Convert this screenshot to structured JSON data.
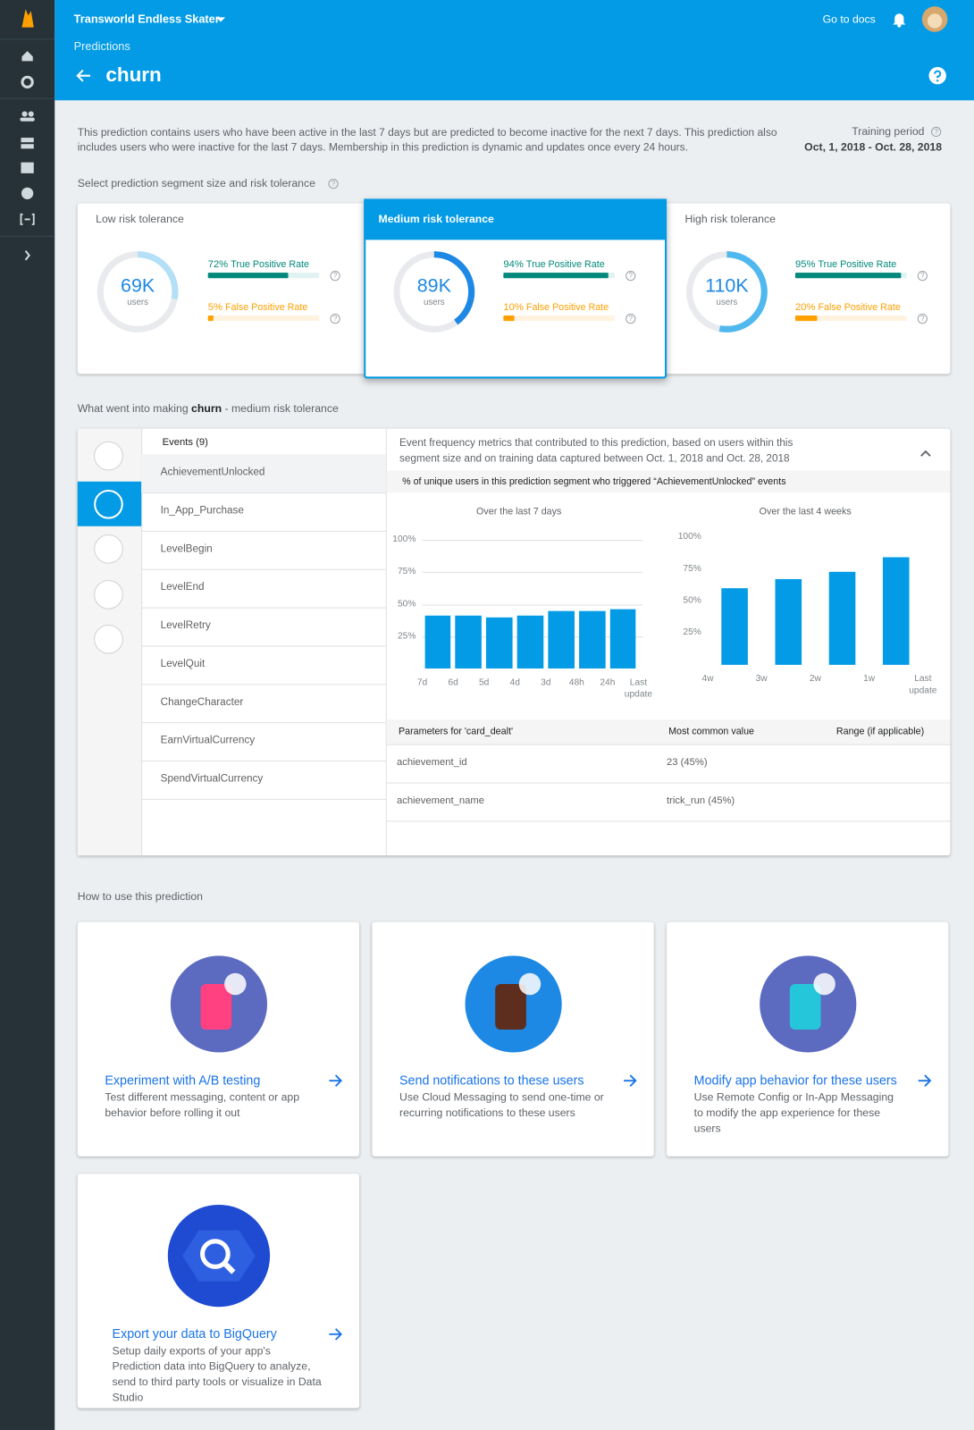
{
  "app": {
    "project": "Transworld Endless Skater",
    "docs_link": "Go to docs"
  },
  "header": {
    "breadcrumb": "Predictions",
    "title": "churn"
  },
  "description": "This prediction contains users who have been active in the last 7 days but are predicted to become inactive for the next 7 days. This prediction also includes users who were inactive for the last 7 days. Membership in this prediction is dynamic and updates once every 24 hours.",
  "training": {
    "label": "Training period",
    "range": "Oct, 1, 2018 - Oct. 28, 2018"
  },
  "segment_prompt": "Select prediction segment size and risk tolerance",
  "tolerances": [
    {
      "name": "Low risk tolerance",
      "users": "69K",
      "unit": "users",
      "ring": 28,
      "tpr": 72,
      "tpr_label": "72%",
      "tpr_text": "True Positive Rate",
      "fpr": 5,
      "fpr_label": "5%",
      "fpr_text": "False Positive Rate"
    },
    {
      "name": "Medium risk tolerance",
      "users": "89K",
      "unit": "users",
      "ring": 40,
      "tpr": 94,
      "tpr_label": "94%",
      "tpr_text": "True Positive Rate",
      "fpr": 10,
      "fpr_label": "10%",
      "fpr_text": "False Positive Rate"
    },
    {
      "name": "High risk tolerance",
      "users": "110K",
      "unit": "users",
      "ring": 53,
      "tpr": 95,
      "tpr_label": "95%",
      "tpr_text": "True Positive Rate",
      "fpr": 20,
      "fpr_label": "20%",
      "fpr_text": "False Positive Rate"
    }
  ],
  "inputs_heading": {
    "before": "What went into making",
    "name": "churn",
    "after": "- medium risk tolerance"
  },
  "events_header": "Events (9)",
  "events": [
    "AchievementUnlocked",
    "In_App_Purchase",
    "LevelBegin",
    "LevelEnd",
    "LevelRetry",
    "LevelQuit",
    "ChangeCharacter",
    "EarnVirtualCurrency",
    "SpendVirtualCurrency"
  ],
  "metrics_intro": "Event frequency metrics that contributed to this prediction, based on users within this segment size and on training data captured between Oct. 1, 2018 and Oct. 28, 2018",
  "metrics_subheader": "% of unique users in this prediction segment who triggered “AchievementUnlocked” events",
  "charts": [
    {
      "type": "bar",
      "title": "Over the last 7 days",
      "xtick_labels": [
        "7d",
        "6d",
        "5d",
        "4d",
        "3d",
        "48h",
        "24h",
        "Last update"
      ],
      "values": [
        41,
        41,
        40,
        41,
        45,
        45,
        46
      ],
      "color": "#039be5",
      "ylim": [
        0,
        100
      ],
      "yticks": [
        {
          "value": 25,
          "label": "25%"
        },
        {
          "value": 50,
          "label": "50%"
        },
        {
          "value": 75,
          "label": "75%"
        },
        {
          "value": 100,
          "label": "100%"
        }
      ],
      "grid": true
    },
    {
      "type": "bar",
      "title": "Over the last 4 weeks",
      "xtick_labels": [
        "4w",
        "3w",
        "2w",
        "1w",
        "Last update"
      ],
      "values": [
        60,
        67,
        73,
        84
      ],
      "color": "#039be5",
      "ylim": [
        0,
        100
      ],
      "yticks": [
        {
          "value": 25,
          "label": "25%"
        },
        {
          "value": 50,
          "label": "50%"
        },
        {
          "value": 75,
          "label": "75%"
        },
        {
          "value": 100,
          "label": "100%"
        }
      ],
      "grid": false
    }
  ],
  "parameters": {
    "header": [
      "Parameters for 'card_dealt'",
      "Most common value",
      "Range (if applicable)"
    ],
    "rows": [
      [
        "achievement_id",
        "23 (45%)"
      ],
      [
        "achievement_name",
        "trick_run (45%)"
      ]
    ]
  },
  "how_to_heading": "How to use this prediction",
  "how_to": [
    {
      "title": "Experiment with A/B testing",
      "text": "Test different messaging, content or app behavior before rolling it out"
    },
    {
      "title": "Send notifications to these users",
      "text": "Use Cloud Messaging to send one-time or recurring notifications to these users"
    },
    {
      "title": "Modify app behavior for these users",
      "text": "Use Remote Config or In-App Messaging to modify the app experience for these users"
    },
    {
      "title": "Export your data to BigQuery",
      "text": "Setup daily exports of your app's Prediction data into BigQuery to analyze, send to third party tools or visualize in Data Studio"
    }
  ]
}
